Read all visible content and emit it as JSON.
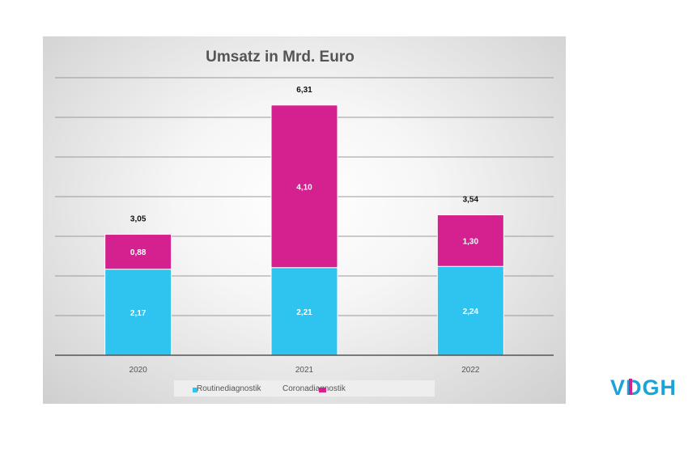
{
  "chart_data": {
    "type": "bar",
    "stacked": true,
    "title": "Umsatz in Mrd. Euro",
    "categories": [
      "2020",
      "2021",
      "2022"
    ],
    "series": [
      {
        "name": "Routinediagnostik",
        "values": [
          2.17,
          2.21,
          2.24
        ],
        "labels": [
          "2,17",
          "2,21",
          "2,24"
        ],
        "color": "#2ec4ef"
      },
      {
        "name": "Coronadiagnostik",
        "values": [
          0.88,
          4.1,
          1.3
        ],
        "labels": [
          "0,88",
          "4,10",
          "1,30"
        ],
        "color": "#d4218f"
      }
    ],
    "totals": [
      3.05,
      6.31,
      3.54
    ],
    "total_labels": [
      "3,05",
      "6,31",
      "3,54"
    ],
    "ylim": [
      0,
      7
    ],
    "grid": true,
    "legend_position": "bottom"
  },
  "logo": {
    "text": "VDGH",
    "colors": {
      "v": "#1aa3d9",
      "d_accent": "#d4218f",
      "rest": "#1aa3d9"
    }
  }
}
